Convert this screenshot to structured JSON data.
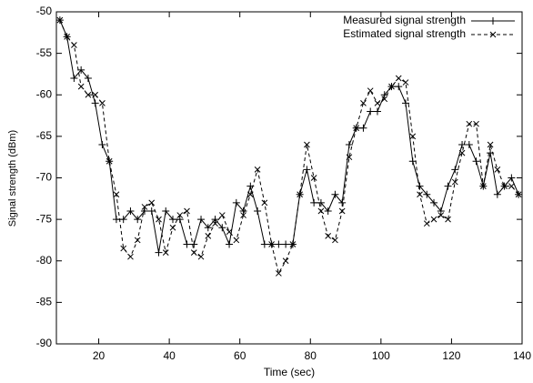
{
  "chart_data": {
    "type": "line",
    "xlabel": "Time (sec)",
    "ylabel": "Signal strength (dBm)",
    "x": [
      9,
      11,
      13,
      15,
      17,
      19,
      21,
      23,
      25,
      27,
      29,
      31,
      33,
      35,
      37,
      39,
      41,
      43,
      45,
      47,
      49,
      51,
      53,
      55,
      57,
      59,
      61,
      63,
      65,
      67,
      69,
      71,
      73,
      75,
      77,
      79,
      81,
      83,
      85,
      87,
      89,
      91,
      93,
      95,
      97,
      99,
      101,
      103,
      105,
      107,
      109,
      111,
      113,
      115,
      117,
      119,
      121,
      123,
      125,
      127,
      129,
      131,
      133,
      135,
      137,
      139
    ],
    "series": [
      {
        "name": "Measured signal strength",
        "color": "#000000",
        "dash": "solid",
        "marker": "+",
        "values": [
          -51,
          -53,
          -58,
          -57,
          -58,
          -61,
          -66,
          -68,
          -75,
          -75,
          -74,
          -75,
          -74,
          -74,
          -79,
          -74,
          -75,
          -75,
          -78,
          -78,
          -75,
          -76,
          -75,
          -76,
          -78,
          -73,
          -74,
          -71,
          -74,
          -78,
          -78,
          -78,
          -78,
          -78,
          -72,
          -69,
          -73,
          -73,
          -74,
          -72,
          -73,
          -66,
          -64,
          -64,
          -62,
          -62,
          -60,
          -59,
          -59,
          -61,
          -68,
          -71,
          -72,
          -73,
          -74,
          -71,
          -69,
          -66,
          -66,
          -68,
          -71,
          -67,
          -72,
          -71,
          -70,
          -72
        ]
      },
      {
        "name": "Estimated signal strength",
        "color": "#000000",
        "dash": "dashed",
        "marker": "x",
        "values": [
          -51,
          -53,
          -54,
          -59,
          -60,
          -60,
          -61,
          -68,
          -72,
          -78.5,
          -79.5,
          -77.5,
          -73.5,
          -73,
          -75,
          -79,
          -76,
          -74.5,
          -74,
          -79,
          -79.5,
          -77,
          -75.5,
          -74.5,
          -76.5,
          -77.5,
          -74.5,
          -72,
          -69,
          -73,
          -78,
          -81.5,
          -80,
          -78,
          -72,
          -66,
          -70,
          -74,
          -77,
          -77.5,
          -74,
          -67.5,
          -64,
          -61,
          -59.5,
          -61,
          -60.5,
          -59,
          -58,
          -58.5,
          -65,
          -72,
          -75.5,
          -75,
          -74.5,
          -75,
          -70.5,
          -67,
          -63.5,
          -63.5,
          -71,
          -66,
          -69,
          -71,
          -71,
          -72
        ]
      }
    ],
    "xlim": [
      8,
      140
    ],
    "xticks": [
      20,
      40,
      60,
      80,
      100,
      120,
      140
    ],
    "ylim": [
      -90,
      -50
    ],
    "yticks": [
      -90,
      -85,
      -80,
      -75,
      -70,
      -65,
      -60,
      -55,
      -50
    ],
    "legend": "top-right"
  }
}
